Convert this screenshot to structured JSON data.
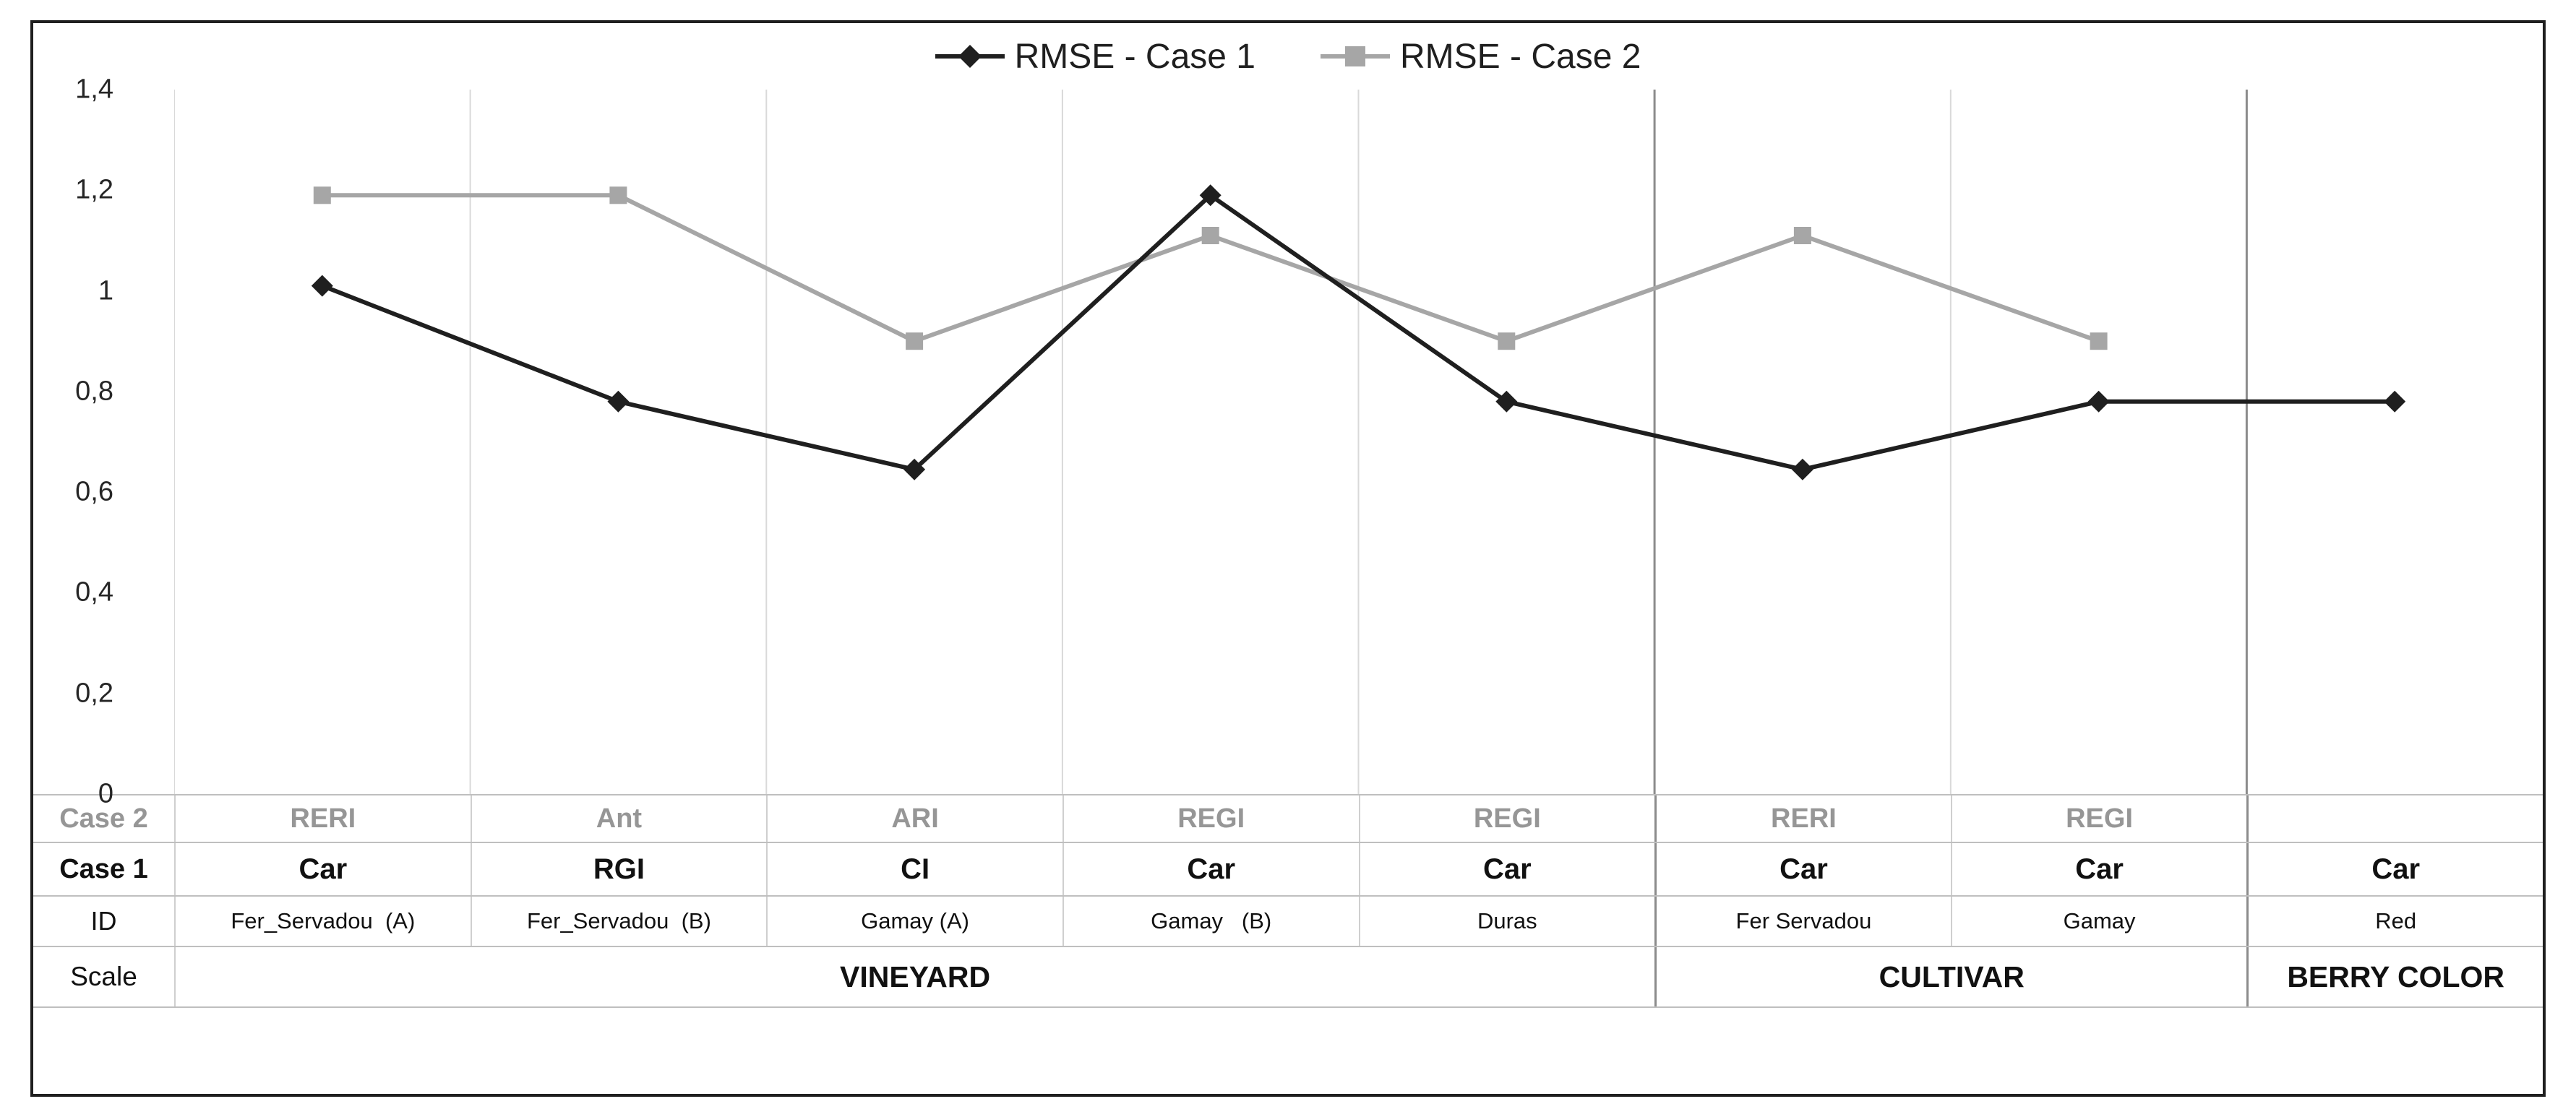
{
  "legend": {
    "items": [
      {
        "label": "RMSE - Case 1",
        "marker": "diamond",
        "color": "#1f1f1f"
      },
      {
        "label": "RMSE - Case 2",
        "marker": "square",
        "color": "#a6a6a6"
      }
    ]
  },
  "chart_data": {
    "type": "line",
    "title": "",
    "xlabel": "",
    "ylabel": "",
    "categories": [
      "Fer_Servadou  (A)",
      "Fer_Servadou  (B)",
      "Gamay (A)",
      "Gamay  (B)",
      "Duras",
      "Fer Servadou",
      "Gamay",
      "Red"
    ],
    "series": [
      {
        "name": "RMSE - Case 1",
        "marker": "diamond",
        "color": "#1f1f1f",
        "values": [
          1.01,
          0.78,
          0.645,
          1.19,
          0.78,
          0.645,
          0.78,
          0.78
        ]
      },
      {
        "name": "RMSE - Case 2",
        "marker": "square",
        "color": "#a6a6a6",
        "values": [
          1.19,
          1.19,
          0.9,
          1.11,
          0.9,
          1.11,
          0.9,
          null
        ]
      }
    ],
    "ylim": [
      0,
      1.4
    ],
    "yticks": [
      {
        "value": 0,
        "label": "0"
      },
      {
        "value": 0.2,
        "label": "0,2"
      },
      {
        "value": 0.4,
        "label": "0,4"
      },
      {
        "value": 0.6,
        "label": "0,6"
      },
      {
        "value": 0.8,
        "label": "0,8"
      },
      {
        "value": 1,
        "label": "1"
      },
      {
        "value": 1.2,
        "label": "1,2"
      },
      {
        "value": 1.4,
        "label": "1,4"
      }
    ],
    "grid": "vertical",
    "dark_boundary_columns": [
      5,
      7
    ],
    "legend_position": "top"
  },
  "table": {
    "rows": [
      {
        "key": "case2",
        "label": "Case 2",
        "cells": [
          "RERI",
          "Ant",
          "ARI",
          "REGI",
          "REGI",
          "RERI",
          "REGI",
          ""
        ]
      },
      {
        "key": "case1",
        "label": "Case 1",
        "cells": [
          "Car",
          "RGI",
          "CI",
          "Car",
          "Car",
          "Car",
          "Car",
          "Car"
        ]
      },
      {
        "key": "id",
        "label": "ID",
        "cells": [
          "Fer_Servadou  (A)",
          "Fer_Servadou  (B)",
          "Gamay (A)",
          "Gamay   (B)",
          "Duras",
          "Fer Servadou",
          "Gamay",
          "Red"
        ]
      },
      {
        "key": "scale",
        "label": "Scale",
        "groups": [
          {
            "label": "VINEYARD",
            "span": 5
          },
          {
            "label": "CULTIVAR",
            "span": 2
          },
          {
            "label": "BERRY COLOR",
            "span": 1
          }
        ]
      }
    ]
  },
  "colors": {
    "grid_light": "#d9d9d9",
    "grid_dark": "#8c8c8c",
    "table_line": "#bfbfbf",
    "case2_text": "#969696",
    "frame_border": "#1f1f1f"
  }
}
